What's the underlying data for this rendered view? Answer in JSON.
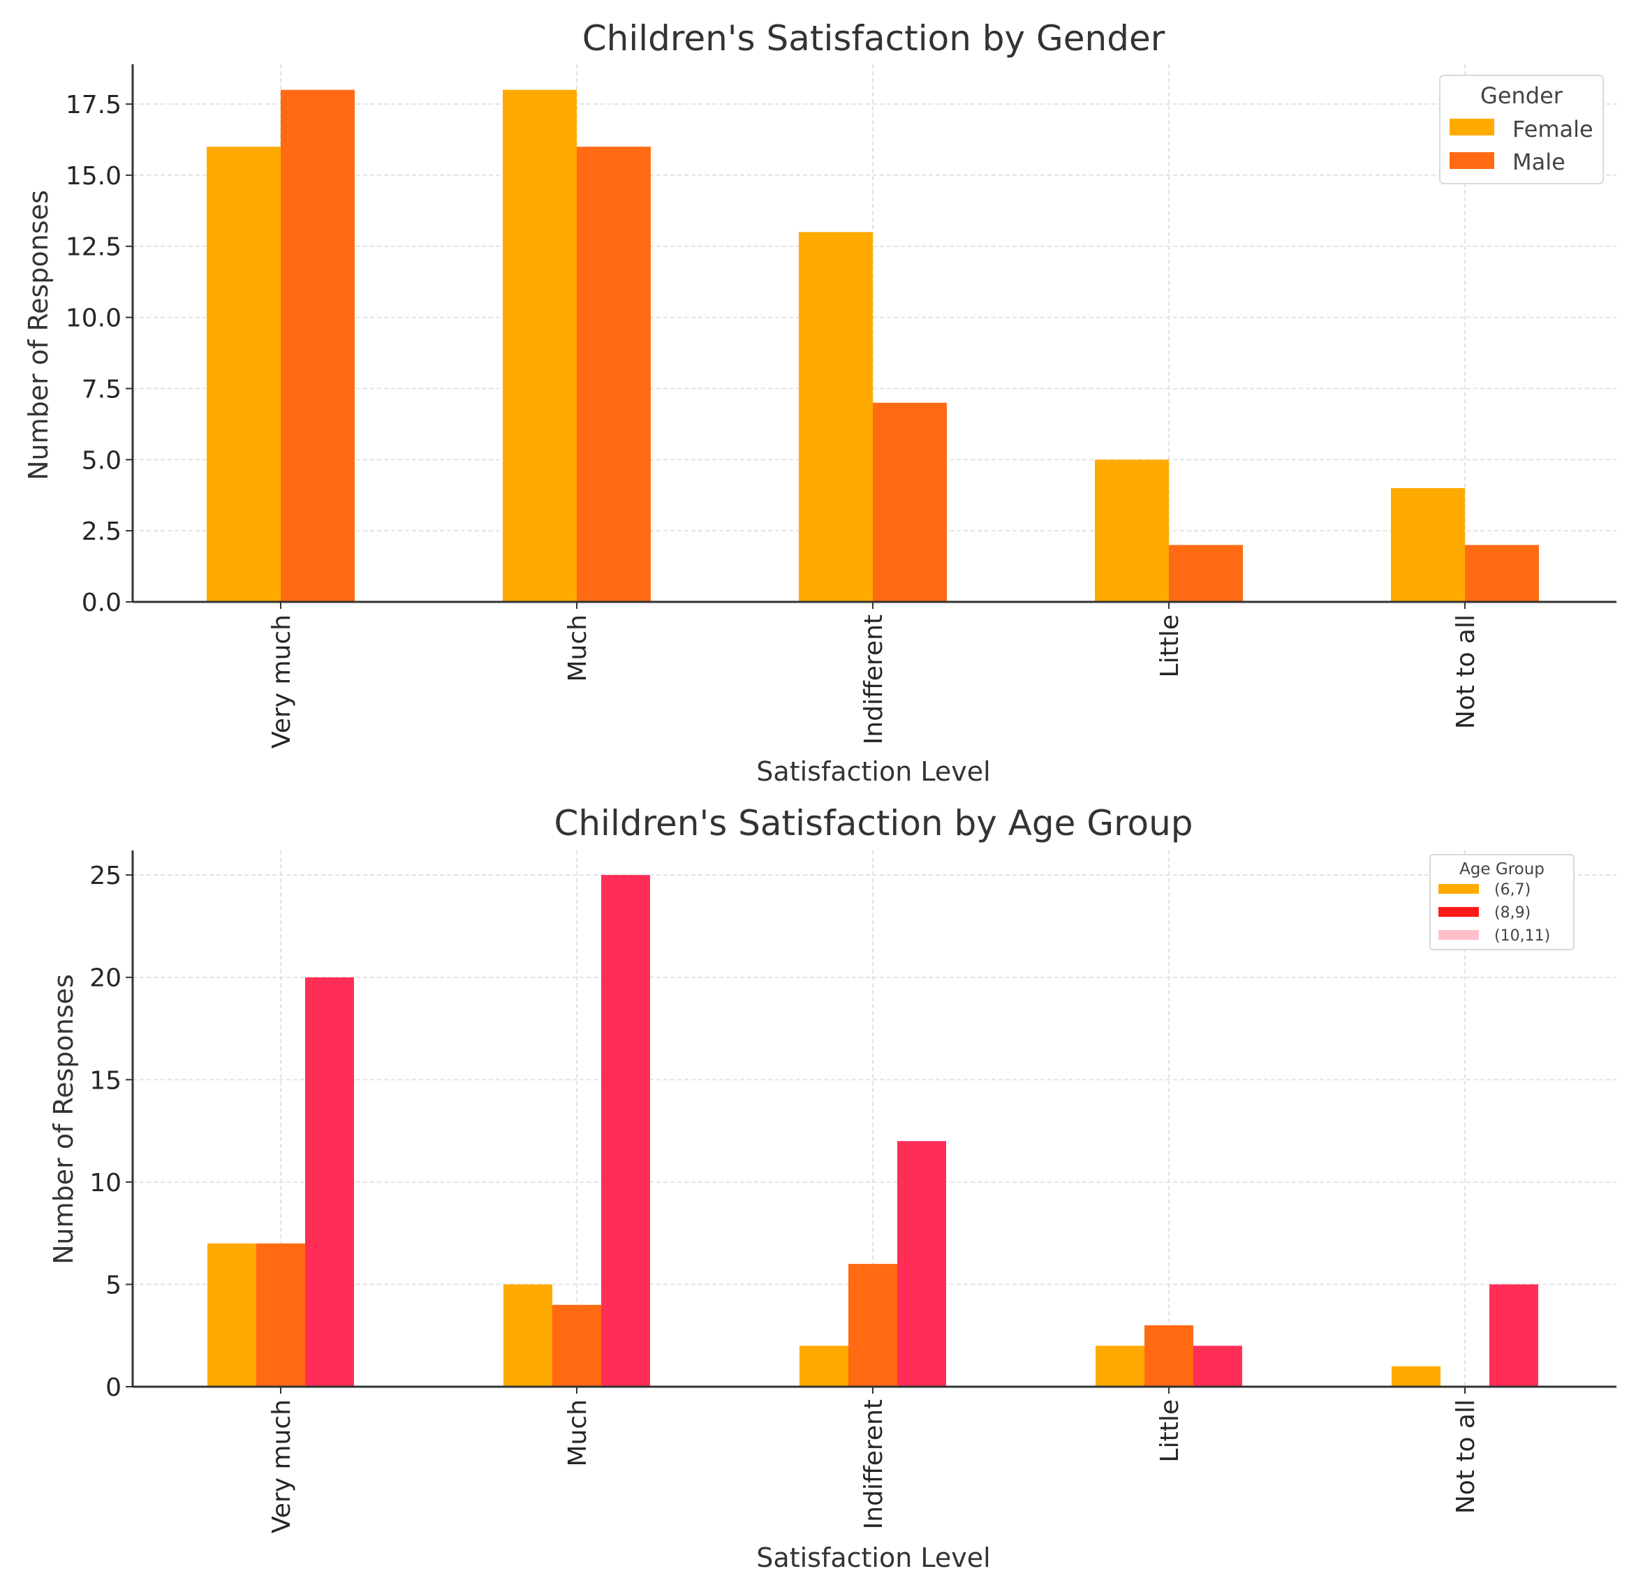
{
  "chart_data": [
    {
      "type": "bar",
      "title": "Children's Satisfaction by Gender",
      "xlabel": "Satisfaction Level",
      "ylabel": "Number of Responses",
      "categories": [
        "Very much",
        "Much",
        "Indifferent",
        "Little",
        "Not to all"
      ],
      "ylim": [
        0,
        18.9
      ],
      "yticks": [
        0,
        2.5,
        5,
        7.5,
        10,
        12.5,
        15,
        17.5
      ],
      "ytick_labels": [
        "0.0",
        "2.5",
        "5.0",
        "7.5",
        "10.0",
        "12.5",
        "15.0",
        "17.5"
      ],
      "grid": true,
      "legend": {
        "title": "Gender",
        "placement": "top-right"
      },
      "series": [
        {
          "name": "Female",
          "color": "#FFAA00",
          "values": [
            16,
            18,
            13,
            5,
            4
          ]
        },
        {
          "name": "Male",
          "color": "#FF6A13",
          "values": [
            18,
            16,
            7,
            2,
            2
          ]
        }
      ]
    },
    {
      "type": "bar",
      "title": "Children's Satisfaction by Age Group",
      "xlabel": "Satisfaction Level",
      "ylabel": "Number of Responses",
      "categories": [
        "Very much",
        "Much",
        "Indifferent",
        "Little",
        "Not to all"
      ],
      "ylim": [
        0,
        26.2
      ],
      "yticks": [
        0,
        5,
        10,
        15,
        20,
        25
      ],
      "ytick_labels": [
        "0",
        "5",
        "10",
        "15",
        "20",
        "25"
      ],
      "grid": true,
      "legend": {
        "title": "Age Group",
        "placement": "top-right"
      },
      "series": [
        {
          "name": "(6,7)",
          "color": "#FFAA00",
          "legend_color": "#FFAA00",
          "values": [
            7,
            5,
            2,
            2,
            1
          ]
        },
        {
          "name": "(8,9)",
          "color": "#FF6A13",
          "legend_color": "#FF1A1A",
          "values": [
            7,
            4,
            6,
            3,
            0
          ]
        },
        {
          "name": "(10,11)",
          "color": "#FF2E57",
          "legend_color": "#FFC0CB",
          "values": [
            20,
            25,
            12,
            2,
            5
          ]
        }
      ]
    }
  ]
}
